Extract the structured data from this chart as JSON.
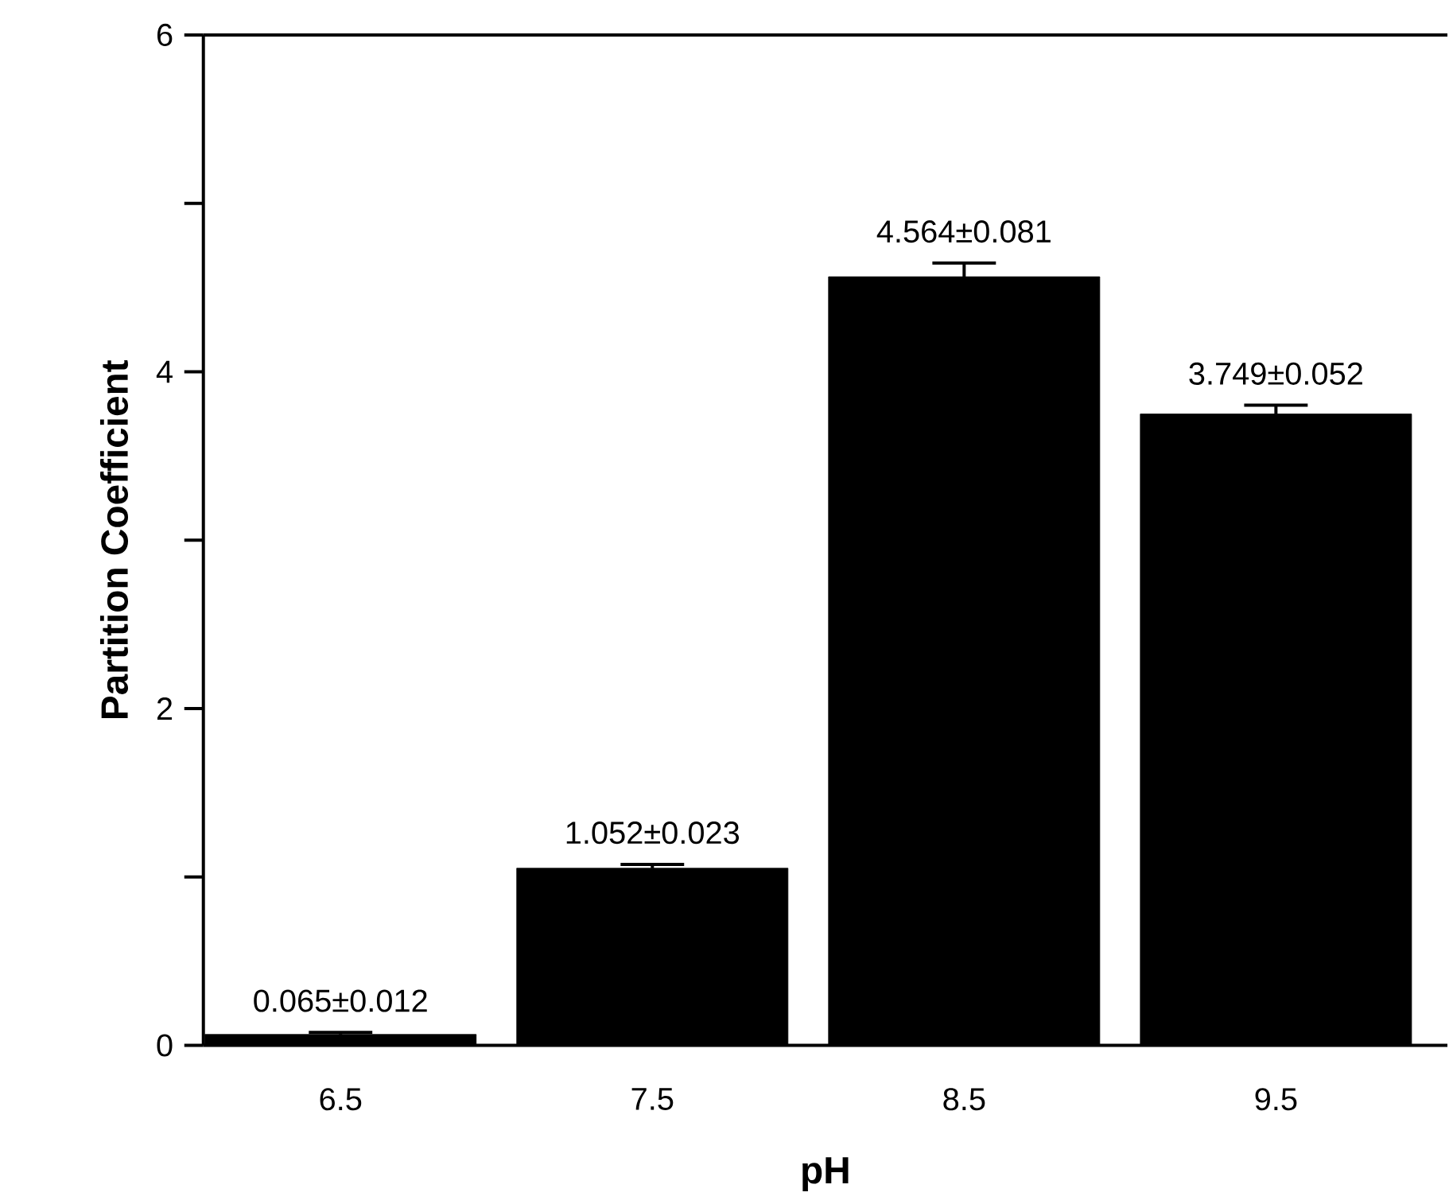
{
  "chart_data": {
    "type": "bar",
    "xlabel": "pH",
    "ylabel": "Partition  Coefficient",
    "categories": [
      "6.5",
      "7.5",
      "8.5",
      "9.5"
    ],
    "values": [
      0.065,
      1.052,
      4.564,
      3.749
    ],
    "errors": [
      0.012,
      0.023,
      0.081,
      0.052
    ],
    "value_labels": [
      "0.065±0.012",
      "1.052±0.023",
      "4.564±0.081",
      "3.749±0.052"
    ],
    "color": "#000000",
    "ylim": [
      0,
      6
    ],
    "yticks": [
      0,
      {
        "value": 1,
        "label": null
      },
      2,
      {
        "value": 3,
        "label": null
      },
      4,
      {
        "value": 5,
        "label": null
      },
      6
    ],
    "grid": false
  }
}
